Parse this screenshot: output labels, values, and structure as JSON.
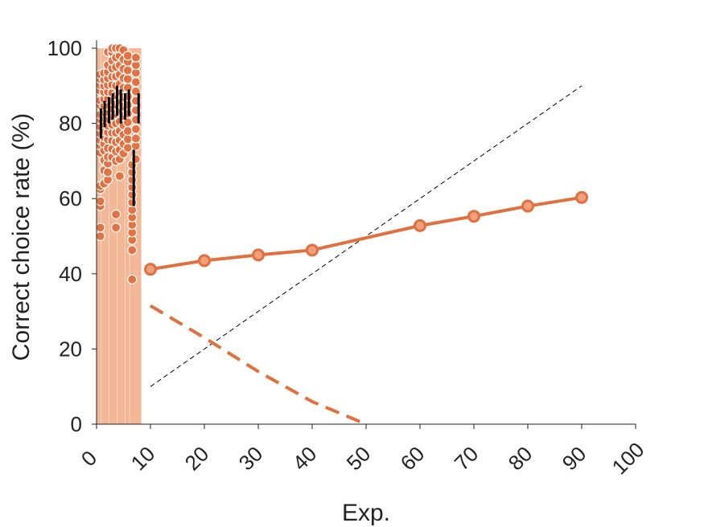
{
  "chart_data": {
    "type": "line",
    "xlabel": "Exp.",
    "ylabel": "Correct choice rate (%)",
    "xlim": [
      0,
      100
    ],
    "ylim": [
      0,
      100
    ],
    "xticks": [
      "0",
      "10",
      "20",
      "30",
      "40",
      "50",
      "60",
      "70",
      "80",
      "90",
      "100"
    ],
    "yticks": [
      "0",
      "20",
      "40",
      "60",
      "80",
      "100"
    ],
    "grid": false,
    "colors": {
      "accent": "#e2703f",
      "marker_fill": "#f0a07c",
      "scatter": "#e06a3a",
      "bars": "#f2b896",
      "error_bars": "#000000",
      "diagonal": "#000000"
    },
    "series": [
      {
        "style": "solid-line-markers",
        "x": [
          10,
          20,
          30,
          40,
          60,
          70,
          80,
          90
        ],
        "y": [
          41.2,
          43.5,
          45.0,
          46.3,
          52.8,
          55.3,
          58.0,
          60.3
        ]
      },
      {
        "style": "dashed-line",
        "x": [
          10,
          20,
          30,
          40,
          50
        ],
        "y": [
          31.5,
          23.0,
          14.0,
          6.0,
          0.0
        ]
      },
      {
        "style": "diagonal-reference",
        "x": [
          10,
          90
        ],
        "y": [
          10,
          90
        ]
      }
    ],
    "bars": {
      "x": [
        0.5,
        1.3,
        2.0,
        2.8,
        3.5,
        4.3,
        5.0,
        5.8,
        6.6,
        7.3,
        8.0
      ],
      "y": [
        100,
        100,
        100,
        100,
        100,
        100,
        100,
        100,
        100,
        100,
        100
      ]
    },
    "error_bars": [
      {
        "x": 0.8,
        "low": 76,
        "high": 84
      },
      {
        "x": 1.5,
        "low": 79,
        "high": 86
      },
      {
        "x": 2.3,
        "low": 80,
        "high": 87
      },
      {
        "x": 3.0,
        "low": 81,
        "high": 88
      },
      {
        "x": 3.8,
        "low": 82,
        "high": 90
      },
      {
        "x": 4.5,
        "low": 80,
        "high": 89
      },
      {
        "x": 5.3,
        "low": 81,
        "high": 88
      },
      {
        "x": 6.0,
        "low": 82,
        "high": 89
      },
      {
        "x": 6.9,
        "low": 58,
        "high": 73
      },
      {
        "x": 7.8,
        "low": 80,
        "high": 88
      }
    ],
    "scatter_columns": [
      {
        "x": 0.7,
        "y": [
          50.0,
          52.3,
          58.0,
          59.3,
          62.5,
          63.4,
          72.2,
          74.1,
          75.5,
          77.3,
          79.1,
          81.0,
          82.3,
          84.8,
          86.1,
          88.7,
          90.2,
          91.8,
          93.0
        ]
      },
      {
        "x": 1.4,
        "y": [
          64.0,
          67.5,
          70.2,
          72.8,
          74.6,
          76.3,
          78.0,
          79.8,
          81.5,
          83.0,
          84.7,
          86.5,
          88.3,
          90.0,
          91.6,
          93.4
        ]
      },
      {
        "x": 2.1,
        "y": [
          65.0,
          67.0,
          69.3,
          71.1,
          73.4,
          75.7,
          77.6,
          79.4,
          81.2,
          83.0,
          84.8,
          86.6,
          88.4,
          90.2,
          92.0,
          93.7,
          95.5,
          99.0
        ]
      },
      {
        "x": 2.9,
        "y": [
          71.0,
          73.2,
          75.4,
          77.5,
          79.6,
          81.8,
          83.9,
          86.0,
          88.1,
          90.3,
          92.4,
          94.6,
          96.7,
          98.9,
          100.0
        ]
      },
      {
        "x": 3.6,
        "y": [
          52.3,
          55.8,
          70.0,
          72.5,
          75.0,
          77.5,
          80.0,
          82.5,
          85.0,
          87.5,
          90.0,
          92.5,
          95.0,
          97.5,
          100.0
        ]
      },
      {
        "x": 4.3,
        "y": [
          66.0,
          70.5,
          73.0,
          75.5,
          78.0,
          80.5,
          83.0,
          85.5,
          88.0,
          90.5,
          93.0,
          95.5,
          98.0,
          100.0
        ]
      },
      {
        "x": 5.0,
        "y": [
          72.0,
          74.5,
          77.0,
          79.5,
          82.0,
          84.5,
          87.0,
          89.5,
          92.0,
          94.5,
          97.0,
          99.5
        ]
      },
      {
        "x": 5.8,
        "y": [
          73.5,
          75.8,
          78.0,
          80.3,
          82.6,
          84.9,
          87.2,
          89.5,
          91.8,
          94.1,
          96.4,
          98.0
        ]
      },
      {
        "x": 6.6,
        "y": [
          38.5,
          46.3,
          49.0,
          51.0,
          53.0,
          55.0,
          57.0,
          59.0,
          61.0,
          63.0,
          65.0,
          67.0,
          69.0
        ]
      },
      {
        "x": 7.3,
        "y": [
          70.5,
          74.0,
          76.0,
          78.5,
          81.0,
          83.5,
          86.0,
          88.5,
          91.0,
          93.5,
          95.5,
          97.5
        ]
      }
    ]
  }
}
